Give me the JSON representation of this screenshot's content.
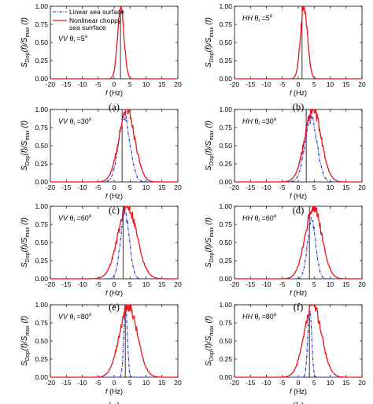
{
  "colors": {
    "linear": "#1f2fbf",
    "nonlinear": "#e8141e",
    "marker": "#000000"
  },
  "legend": {
    "linear": "Linear sea surface",
    "nonlinear_line1": "Nonlinear choppy",
    "nonlinear_line2": "sea surrface"
  },
  "axes": {
    "xlabel_f": "f",
    "xlabel_unit": " (Hz)",
    "ylabel": {
      "s": "S",
      "dop": "Dop",
      "f1": "(f)/S",
      "max": "max",
      "f2": "(f)"
    },
    "xticks": [
      "-20",
      "-15",
      "-10",
      "-5",
      "0",
      "5",
      "10",
      "15",
      "20"
    ],
    "yticks": [
      "0.00",
      "0.25",
      "0.50",
      "0.75",
      "1.00"
    ]
  },
  "chart_data": [
    {
      "type": "line",
      "caption": "(a)",
      "pol": "VV",
      "theta_label": "θ",
      "theta_sub": "i",
      "theta_val": "=5",
      "theta_deg": "o",
      "xlim": [
        -20,
        20
      ],
      "ylim": [
        0,
        1
      ],
      "center": 2,
      "marker": 2,
      "series": [
        {
          "key": "nonlinear",
          "mu": 2.1,
          "sigma": 1.0,
          "peak": 1.0
        }
      ]
    },
    {
      "type": "line",
      "caption": "(b)",
      "pol": "HH",
      "theta_label": "θ",
      "theta_sub": "i",
      "theta_val": "=5",
      "theta_deg": "o",
      "xlim": [
        -20,
        20
      ],
      "ylim": [
        0,
        1
      ],
      "center": 1.2,
      "marker": 1.2,
      "series": [
        {
          "key": "nonlinear",
          "mu": 1.8,
          "sigma": 1.1,
          "peak": 1.0
        }
      ]
    },
    {
      "type": "line",
      "caption": "(c)",
      "pol": "VV",
      "theta_label": "θ",
      "theta_sub": "i",
      "theta_val": "=30",
      "theta_deg": "o",
      "xlim": [
        -20,
        20
      ],
      "ylim": [
        0,
        1
      ],
      "center": 2.5,
      "marker": 2.5,
      "series": [
        {
          "key": "linear",
          "mu": 3.2,
          "sigma": 1.8,
          "peak": 0.9
        },
        {
          "key": "nonlinear",
          "mu": 4.0,
          "sigma": 2.5,
          "peak": 1.0
        }
      ]
    },
    {
      "type": "line",
      "caption": "(d)",
      "pol": "HH",
      "theta_label": "θ",
      "theta_sub": "i",
      "theta_val": "=30",
      "theta_deg": "o",
      "xlim": [
        -20,
        20
      ],
      "ylim": [
        0,
        1
      ],
      "center": 2.5,
      "marker": 2.5,
      "series": [
        {
          "key": "linear",
          "mu": 4.0,
          "sigma": 1.9,
          "peak": 0.88
        },
        {
          "key": "nonlinear",
          "mu": 4.6,
          "sigma": 2.6,
          "peak": 1.0
        }
      ]
    },
    {
      "type": "line",
      "caption": "(e)",
      "pol": "VV",
      "theta_label": "θ",
      "theta_sub": "i",
      "theta_val": "=60",
      "theta_deg": "o",
      "xlim": [
        -20,
        20
      ],
      "ylim": [
        0,
        1
      ],
      "center": 2.8,
      "marker": 2.8,
      "series": [
        {
          "key": "linear",
          "mu": 3.4,
          "sigma": 1.4,
          "peak": 0.88
        },
        {
          "key": "nonlinear",
          "mu": 4.2,
          "sigma": 3.0,
          "peak": 1.0
        }
      ]
    },
    {
      "type": "line",
      "caption": "(f)",
      "pol": "HH",
      "theta_label": "θ",
      "theta_sub": "i",
      "theta_val": "=60",
      "theta_deg": "o",
      "xlim": [
        -20,
        20
      ],
      "ylim": [
        0,
        1
      ],
      "center": 3.5,
      "marker": 3.5,
      "series": [
        {
          "key": "linear",
          "mu": 4.2,
          "sigma": 1.3,
          "peak": 0.8
        },
        {
          "key": "nonlinear",
          "mu": 4.8,
          "sigma": 2.6,
          "peak": 1.0
        }
      ]
    },
    {
      "type": "line",
      "caption": "(g)",
      "pol": "VV",
      "theta_label": "θ",
      "theta_sub": "i",
      "theta_val": "=80",
      "theta_deg": "o",
      "xlim": [
        -20,
        20
      ],
      "ylim": [
        0,
        1
      ],
      "center": 3.5,
      "marker": 3.5,
      "series": [
        {
          "key": "linear",
          "mu": 3.6,
          "sigma": 0.55,
          "peak": 1.0
        },
        {
          "key": "nonlinear",
          "mu": 4.5,
          "sigma": 2.8,
          "peak": 0.98
        }
      ]
    },
    {
      "type": "line",
      "caption": "(h)",
      "pol": "HH",
      "theta_label": "θ",
      "theta_sub": "i",
      "theta_val": "=80",
      "theta_deg": "o",
      "xlim": [
        -20,
        20
      ],
      "ylim": [
        0,
        1
      ],
      "center": 3.5,
      "marker": 3.5,
      "series": [
        {
          "key": "linear",
          "mu": 3.6,
          "sigma": 0.6,
          "peak": 0.92
        },
        {
          "key": "nonlinear",
          "mu": 4.6,
          "sigma": 2.7,
          "peak": 1.0
        }
      ]
    }
  ]
}
